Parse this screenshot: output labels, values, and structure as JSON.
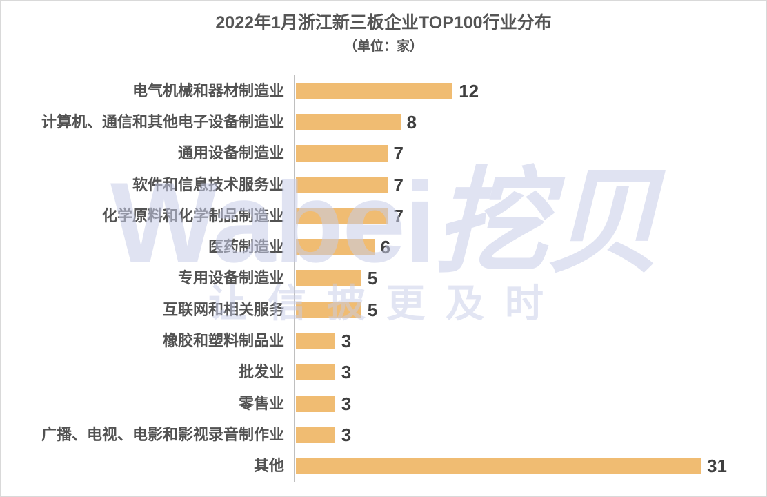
{
  "page": {
    "background_color": "#ffffff",
    "border_color": "#d9d9d9"
  },
  "header": {
    "title": "2022年1月浙江新三板企业TOP100行业分布",
    "subtitle": "（单位：家）"
  },
  "watermark": {
    "brand_latin": "Wabei",
    "brand_cjk": "挖贝",
    "slogan": "让信披更及时",
    "color": "#dfe3f2"
  },
  "chart_data": {
    "type": "bar",
    "orientation": "horizontal",
    "title": "2022年1月浙江新三板企业TOP100行业分布",
    "subtitle": "（单位：家）",
    "unit": "家",
    "categories": [
      "电气机械和器材制造业",
      "计算机、通信和其他电子设备制造业",
      "通用设备制造业",
      "软件和信息技术服务业",
      "化学原料和化学制品制造业",
      "医药制造业",
      "专用设备制造业",
      "互联网和相关服务",
      "橡胶和塑料制品业",
      "批发业",
      "零售业",
      "广播、电视、电影和影视录音制作业",
      "其他"
    ],
    "values": [
      12,
      8,
      7,
      7,
      7,
      6,
      5,
      5,
      3,
      3,
      3,
      3,
      31
    ],
    "xlim": [
      0,
      31
    ],
    "grid": false,
    "legend": "none",
    "value_labels": "outside-end",
    "bar_color": "#f0bc72",
    "axis_color": "#bfbfbf",
    "label_color": "#525252",
    "value_color": "#3f3f3f"
  }
}
